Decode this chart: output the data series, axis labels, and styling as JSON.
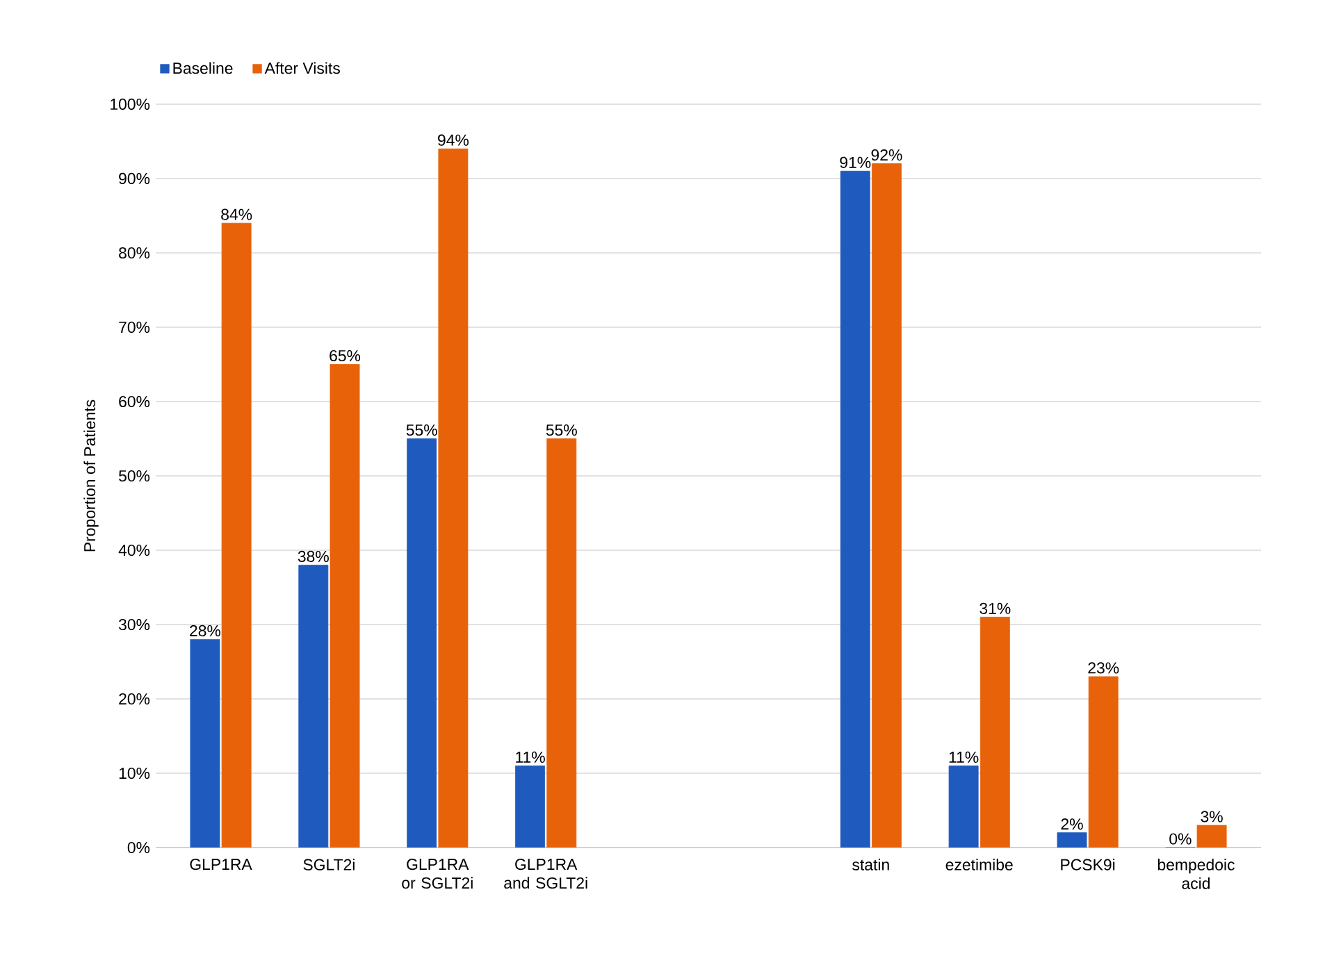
{
  "chart_data": {
    "type": "bar",
    "ylabel": "Proportion of Patients",
    "categories": [
      "GLP1RA",
      "SGLT2i",
      "GLP1RA or SGLT2i",
      "GLP1RA and SGLT2i",
      null,
      null,
      "statin",
      "ezetimibe",
      "PCSK9i",
      "bempedoic acid"
    ],
    "series": [
      {
        "name": "Baseline",
        "color": "#1f5bbf",
        "values": [
          28,
          38,
          55,
          11,
          null,
          null,
          91,
          11,
          2,
          0
        ],
        "value_labels": [
          "28%",
          "38%",
          "55%",
          "11%",
          null,
          null,
          "91%",
          "11%",
          "2%",
          "0%"
        ]
      },
      {
        "name": "After Visits",
        "color": "#e8620a",
        "values": [
          84,
          65,
          94,
          55,
          null,
          null,
          92,
          31,
          23,
          3
        ],
        "value_labels": [
          "84%",
          "65%",
          "94%",
          "55%",
          null,
          null,
          "92%",
          "31%",
          "23%",
          "3%"
        ]
      }
    ],
    "ylim": [
      0,
      100
    ],
    "yticks": [
      {
        "value": 0,
        "label": "0%"
      },
      {
        "value": 10,
        "label": "10%"
      },
      {
        "value": 20,
        "label": "20%"
      },
      {
        "value": 30,
        "label": "30%"
      },
      {
        "value": 40,
        "label": "40%"
      },
      {
        "value": 50,
        "label": "50%"
      },
      {
        "value": 60,
        "label": "60%"
      },
      {
        "value": 70,
        "label": "70%"
      },
      {
        "value": 80,
        "label": "80%"
      },
      {
        "value": 90,
        "label": "90%"
      },
      {
        "value": 100,
        "label": "100%"
      }
    ],
    "grid": "y",
    "legend": "top left"
  }
}
